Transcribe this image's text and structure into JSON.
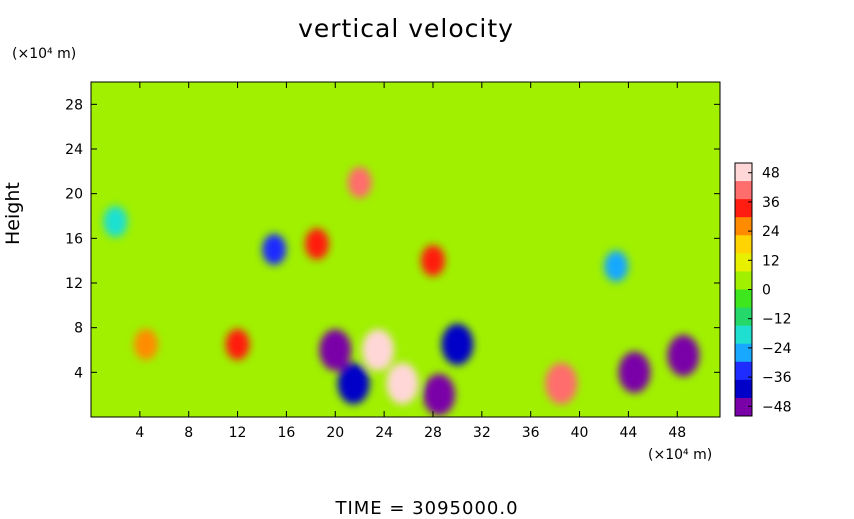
{
  "chart_data": {
    "type": "heatmap",
    "title": "vertical velocity",
    "ylabel": "Height",
    "xlabel": "",
    "x_unit": "(×10⁴ m)",
    "y_unit": "(×10⁴ m)",
    "footer": "TIME  =  3095000.0",
    "xlim": [
      0,
      51.5
    ],
    "ylim": [
      0,
      30
    ],
    "x_ticks": [
      4,
      8,
      12,
      16,
      20,
      24,
      28,
      32,
      36,
      40,
      44,
      48
    ],
    "y_ticks": [
      4,
      8,
      12,
      16,
      20,
      24,
      28
    ],
    "colorbar": {
      "range": [
        -52,
        52
      ],
      "ticks": [
        48,
        36,
        24,
        12,
        0,
        -12,
        -24,
        -36,
        -48
      ],
      "tick_labels": [
        "48",
        "36",
        "24",
        "12",
        "0",
        "−12",
        "−24",
        "−36",
        "−48"
      ],
      "colors": [
        "#ffd7d7",
        "#ff6d6d",
        "#ff1c10",
        "#ff8c00",
        "#ffd400",
        "#e8f000",
        "#a0f000",
        "#3ee61e",
        "#25d86a",
        "#1fe0d0",
        "#18a8ff",
        "#1e2cff",
        "#0000c8",
        "#7a00a8"
      ]
    },
    "field_description_features": [
      {
        "x": 22.0,
        "y": 21.0,
        "value": 40
      },
      {
        "x": 23.5,
        "y": 6.0,
        "value": 45
      },
      {
        "x": 25.5,
        "y": 3.0,
        "value": 50
      },
      {
        "x": 38.5,
        "y": 3.0,
        "value": 44
      },
      {
        "x": 12.0,
        "y": 6.5,
        "value": 30
      },
      {
        "x": 20.0,
        "y": 6.0,
        "value": -48
      },
      {
        "x": 21.5,
        "y": 3.0,
        "value": -44
      },
      {
        "x": 28.5,
        "y": 2.0,
        "value": -48
      },
      {
        "x": 30.0,
        "y": 6.5,
        "value": -42
      },
      {
        "x": 44.5,
        "y": 4.0,
        "value": -46
      },
      {
        "x": 48.5,
        "y": 5.5,
        "value": -48
      },
      {
        "x": 2.0,
        "y": 17.5,
        "value": -22
      },
      {
        "x": 4.5,
        "y": 6.5,
        "value": 24
      },
      {
        "x": 15.0,
        "y": 15.0,
        "value": -30
      },
      {
        "x": 18.5,
        "y": 15.5,
        "value": 30
      },
      {
        "x": 28.0,
        "y": 14.0,
        "value": 34
      },
      {
        "x": 43.0,
        "y": 13.5,
        "value": -26
      }
    ]
  }
}
